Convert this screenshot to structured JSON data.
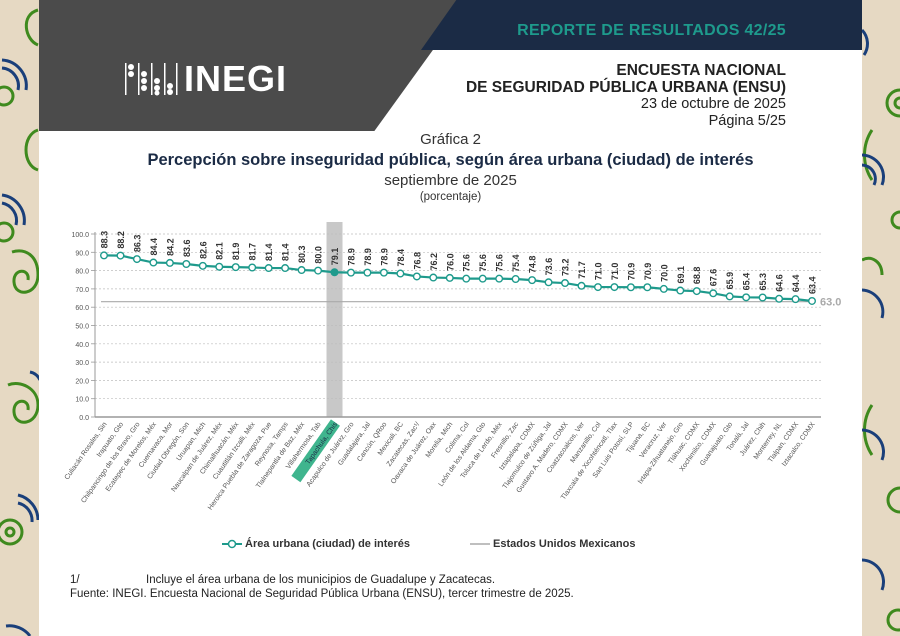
{
  "header": {
    "report_title": "REPORTE DE RESULTADOS 42/25",
    "logo_text": "INEGI",
    "survey_line1": "ENCUESTA NACIONAL",
    "survey_line2": "DE SEGURIDAD PÚBLICA URBANA (ENSU)",
    "date": "23 de octubre de 2025",
    "page": "Página 5/25"
  },
  "colors": {
    "series": "#1e9a8c",
    "national": "#aaaaaa",
    "highlight_bar": "#c8c8c8",
    "highlight_label_bg": "#3fb58e",
    "navy": "#1b2b45",
    "gray_header": "#4b4b4b"
  },
  "chart_data": {
    "type": "line",
    "caption": "Gráfica 2",
    "title": "Percepción sobre inseguridad pública, según área urbana (ciudad) de interés",
    "subtitle": "septiembre de 2025",
    "unit": "(porcentaje)",
    "xlabel": "",
    "ylabel": "",
    "ylim": [
      0,
      100
    ],
    "yticks": [
      "0.0",
      "10.0",
      "20.0",
      "30.0",
      "40.0",
      "50.0",
      "60.0",
      "70.0",
      "80.0",
      "90.0",
      "100.0"
    ],
    "grid": true,
    "legend_position": "bottom",
    "highlight_category": "Tapachula, Chis",
    "categories": [
      "Culiacán Rosales, Sin",
      "Irapuato, Gto",
      "Chilpancingo de los Bravo, Gro",
      "Ecatepec de Morelos, Méx",
      "Cuernavaca, Mor",
      "Ciudad Obregón, Son",
      "Uruapan, Mich",
      "Naucalpan de Juárez, Méx",
      "Chimalhuacán, Méx",
      "Cuautitlán Izcalli, Méx",
      "Heroica Puebla de Zaragoza, Pue",
      "Reynosa, Tamps",
      "Tlalnepantla de Baz, Méx",
      "Villahermosa, Tab",
      "Tapachula, Chis",
      "Acapulco de Juárez, Gro",
      "Guadalajara, Jal",
      "Cancún, QRoo",
      "Mexicali, BC",
      "Zacatecas, Zac¹/",
      "Oaxaca de Juárez, Oax",
      "Morelia, Mich",
      "Colima, Col",
      "León de los Aldama, Gto",
      "Toluca de Lerdo, Méx",
      "Fresnillo, Zac",
      "Iztapalapa, CDMX",
      "Tlajomulco de Zúñiga, Jal",
      "Gustavo A. Madero, CDMX",
      "Coatzacoalcos, Ver",
      "Manzanillo, Col",
      "Tlaxcala de Xicohténcatl, Tlax",
      "San Luis Potosí, SLP",
      "Tijuana, BC",
      "Veracruz, Ver",
      "Ixtapa-Zihuatanejo, Gro",
      "Tláhuac, CDMX",
      "Xochimilco, CDMX",
      "Guanajuato, Gto",
      "Tonalá, Jal",
      "Juárez, Chih",
      "Monterrey, NL",
      "Tlalpan, CDMX",
      "Iztacalco, CDMX"
    ],
    "series": [
      {
        "name": "Área urbana (ciudad) de interés",
        "values": [
          88.3,
          88.2,
          86.3,
          84.4,
          84.2,
          83.6,
          82.6,
          82.1,
          81.9,
          81.7,
          81.4,
          81.4,
          80.3,
          80.0,
          79.1,
          78.9,
          78.9,
          78.9,
          78.4,
          76.8,
          76.2,
          76.0,
          75.6,
          75.6,
          75.6,
          75.4,
          74.8,
          73.6,
          73.2,
          71.7,
          71.0,
          71.0,
          70.9,
          70.9,
          70.0,
          69.1,
          68.8,
          67.6,
          65.9,
          65.4,
          65.3,
          64.6,
          64.4,
          63.4
        ]
      },
      {
        "name": "Estados Unidos Mexicanos",
        "value": 63.0,
        "value_label": "63.0"
      }
    ]
  },
  "legend": {
    "series_label": "Área urbana (ciudad) de interés",
    "national_label": "Estados Unidos Mexicanos"
  },
  "footnotes": {
    "note_marker": "1/",
    "note_text": "Incluye el área urbana de los municipios de Guadalupe y Zacatecas.",
    "source": "Fuente: INEGI. Encuesta Nacional de Seguridad Pública Urbana (ENSU), tercer trimestre de 2025."
  }
}
